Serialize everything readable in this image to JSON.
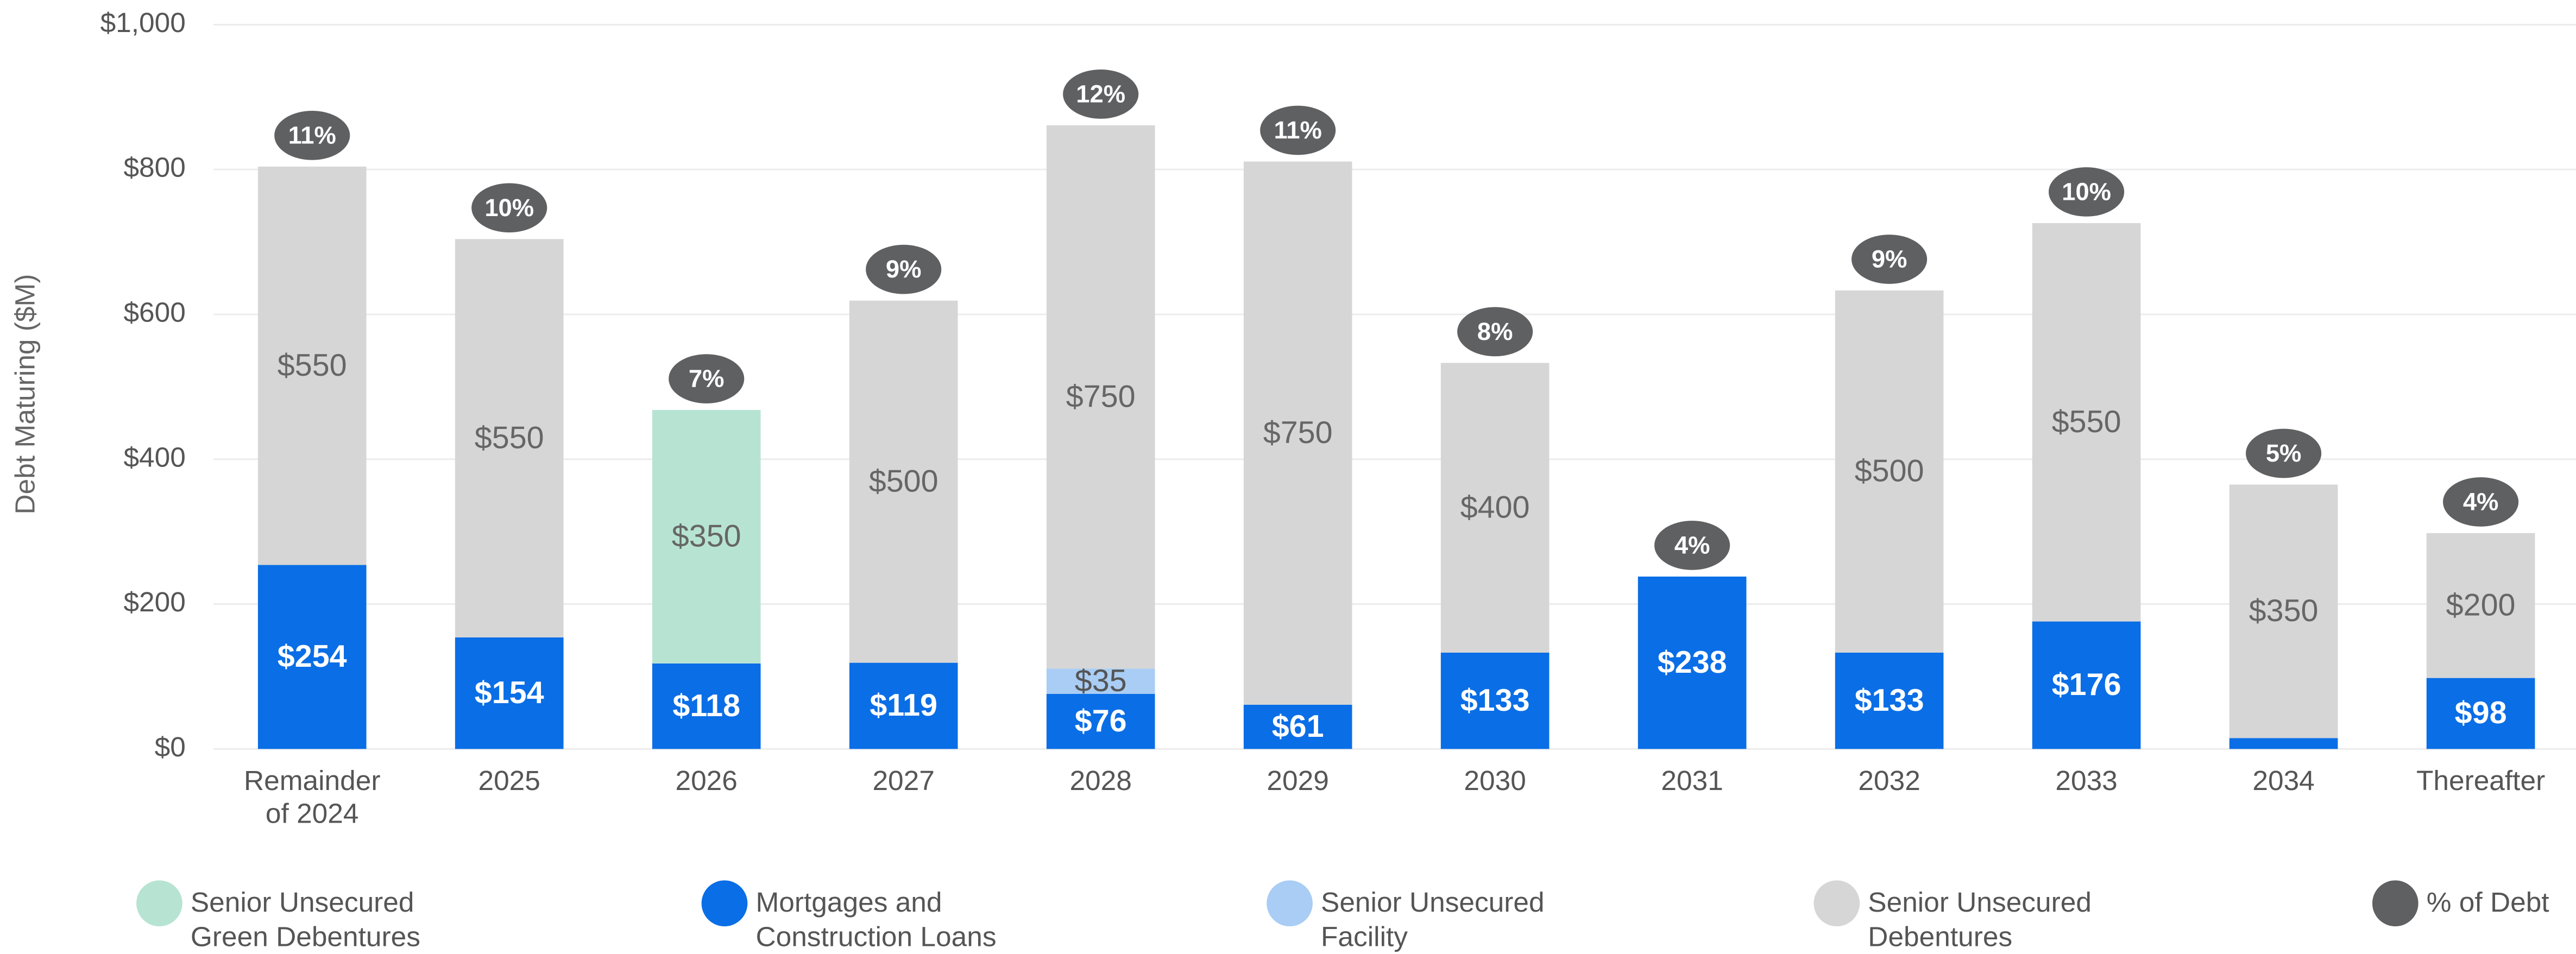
{
  "chart_data": {
    "type": "stacked_bar",
    "y_label": "Debt Maturing ($M)",
    "categories": [
      "Remainder of 2024",
      "2025",
      "2026",
      "2027",
      "2028",
      "2029",
      "2030",
      "2031",
      "2032",
      "2033",
      "2034",
      "Thereafter"
    ],
    "series": [
      {
        "name": "Mortgages and Construction Loans",
        "color": "#0a6ee6",
        "label_color": "#ffffff",
        "values": [
          254,
          154,
          118,
          119,
          76,
          61,
          133,
          238,
          133,
          176,
          15,
          98
        ],
        "value_labels": [
          "$254",
          "$154",
          "$118",
          "$119",
          "$76",
          "$61",
          "$133",
          "$238",
          "$133",
          "$176",
          null,
          "$98"
        ]
      },
      {
        "name": "Senior Unsecured Facility",
        "color": "#a9cdf4",
        "label_color": "#555555",
        "values": [
          null,
          null,
          null,
          null,
          35,
          null,
          null,
          null,
          null,
          null,
          null,
          null
        ],
        "value_labels": [
          null,
          null,
          null,
          null,
          "$35",
          null,
          null,
          null,
          null,
          null,
          null,
          null
        ]
      },
      {
        "name": "Senior Unsecured Green Debentures",
        "color": "#b7e4d2",
        "label_color": "#666666",
        "values": [
          null,
          null,
          350,
          null,
          null,
          null,
          null,
          null,
          null,
          null,
          null,
          null
        ],
        "value_labels": [
          null,
          null,
          "$350",
          null,
          null,
          null,
          null,
          null,
          null,
          null,
          null,
          null
        ]
      },
      {
        "name": "Senior Unsecured Debentures",
        "color": "#d6d6d6",
        "label_color": "#666666",
        "values": [
          550,
          550,
          null,
          500,
          750,
          750,
          400,
          null,
          500,
          550,
          350,
          200
        ],
        "value_labels": [
          "$550",
          "$550",
          null,
          "$500",
          "$750",
          "$750",
          "$400",
          null,
          "$500",
          "$550",
          "$350",
          "$200"
        ]
      }
    ],
    "percent_of_debt": {
      "name": "% of Debt",
      "color": "#5f6062",
      "values": [
        11,
        10,
        7,
        9,
        12,
        11,
        8,
        4,
        9,
        10,
        5,
        4
      ],
      "value_labels": [
        "11%",
        "10%",
        "7%",
        "9%",
        "12%",
        "11%",
        "8%",
        "4%",
        "9%",
        "10%",
        "5%",
        "4%"
      ]
    },
    "ylim": [
      0,
      1000
    ],
    "yticks": [
      {
        "value": 0,
        "label": "$0"
      },
      {
        "value": 200,
        "label": "$200"
      },
      {
        "value": 400,
        "label": "$400"
      },
      {
        "value": 600,
        "label": "$600"
      },
      {
        "value": 800,
        "label": "$800"
      },
      {
        "value": 1000,
        "label": "$1,000"
      }
    ],
    "grid": true
  }
}
